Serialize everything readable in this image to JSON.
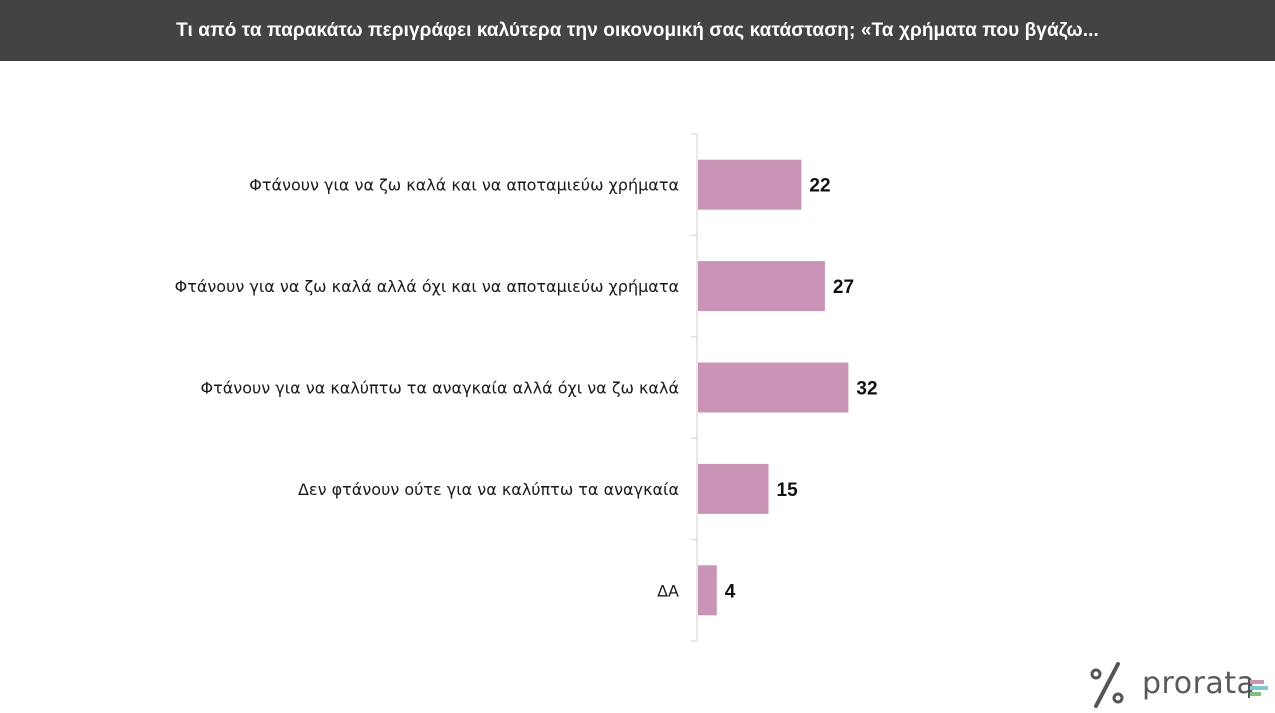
{
  "header": {
    "title": "Τι από τα παρακάτω περιγράφει καλύτερα την οικονομική σας κατάσταση; «Τα χρήματα που βγάζω..."
  },
  "chart_data": {
    "type": "bar",
    "orientation": "horizontal",
    "categories": [
      "Φτάνουν για να ζω καλά και να αποταμιεύω χρήματα",
      "Φτάνουν για να ζω καλά αλλά όχι και να αποταμιεύω χρήματα",
      "Φτάνουν για να καλύπτω τα αναγκαία αλλά όχι να ζω καλά",
      "Δεν φτάνουν ούτε για να καλύπτω τα αναγκαία",
      "ΔΑ"
    ],
    "values": [
      22,
      27,
      32,
      15,
      4
    ],
    "xlim": [
      0,
      100
    ],
    "grid": false,
    "bar_color": "#c994b6",
    "axis_color": "#d0d0d0"
  },
  "logo": {
    "text": "prorata",
    "mark_color": "#555555",
    "bar_colors": [
      "#c994b6",
      "#7ec8d6",
      "#7fbf7f"
    ]
  }
}
